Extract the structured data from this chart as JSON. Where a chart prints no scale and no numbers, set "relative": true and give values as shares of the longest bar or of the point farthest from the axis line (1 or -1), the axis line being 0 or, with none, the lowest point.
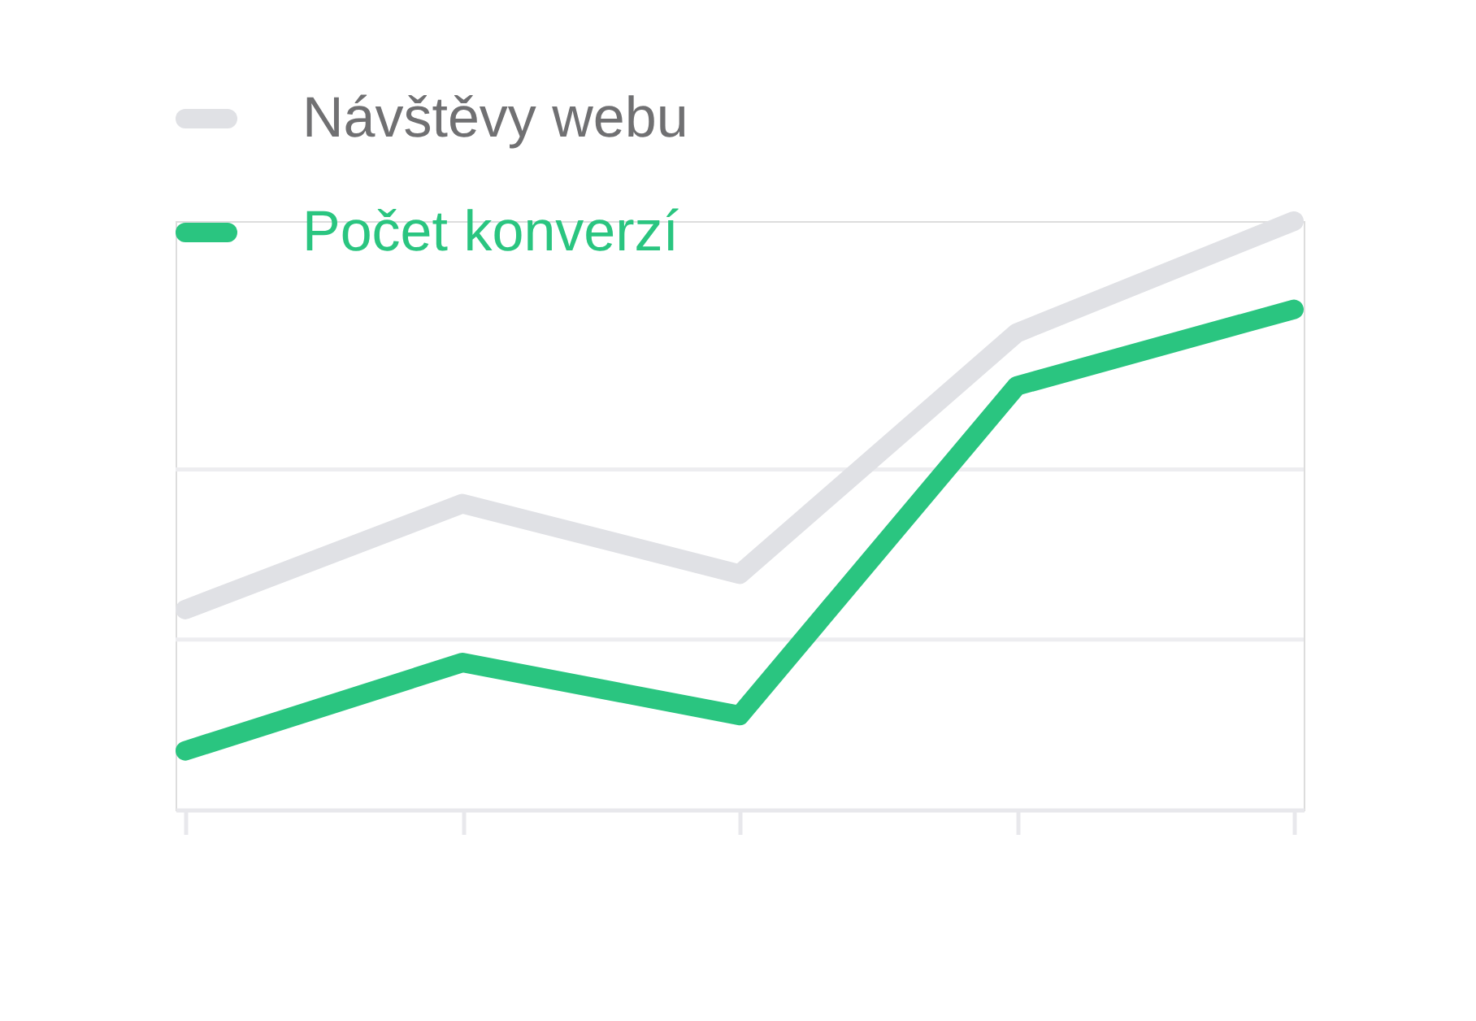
{
  "chart_data": {
    "type": "line",
    "relative": true,
    "legend": "top left",
    "categories": [
      null,
      null,
      null,
      null,
      null
    ],
    "series": [
      {
        "name": "Návštěvy webu",
        "color": "#e0e1e5",
        "values": [
          0.34,
          0.52,
          0.4,
          0.81,
          1
        ]
      },
      {
        "name": "Počet konverzí",
        "color": "#2ac580",
        "values": [
          0.1,
          0.25,
          0.16,
          0.72,
          0.85
        ]
      }
    ],
    "ref_lines": [
      {
        "axis": "y",
        "value": 0.289,
        "color": "#ededf0"
      },
      {
        "axis": "y",
        "value": 0.578,
        "color": "#ededf0"
      }
    ]
  }
}
